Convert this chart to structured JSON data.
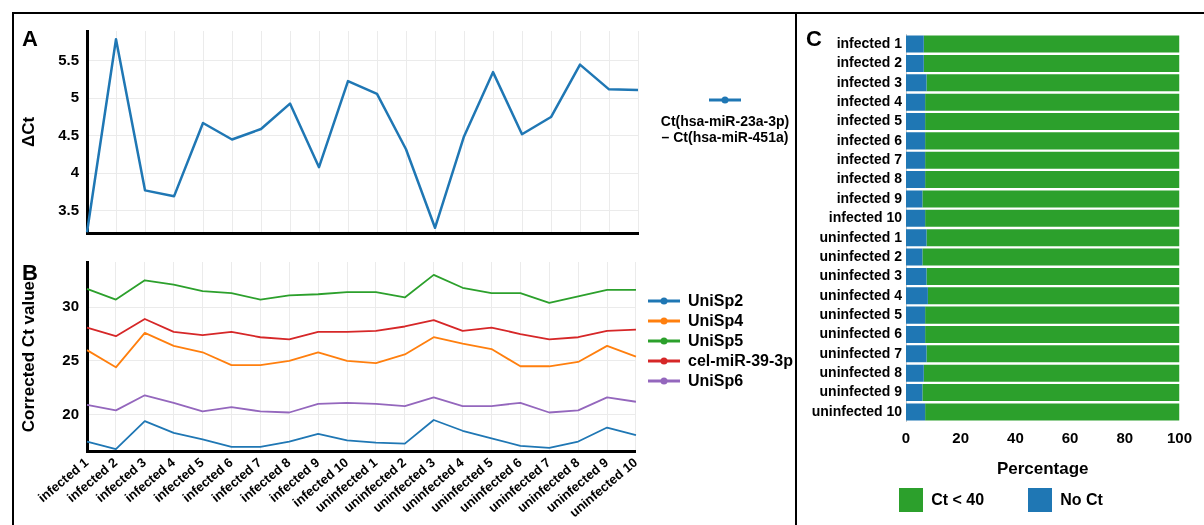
{
  "chart_data": [
    {
      "type": "line",
      "title": "A",
      "categories": [
        null,
        null,
        null,
        null,
        null,
        null,
        null,
        null,
        null,
        null,
        null,
        null,
        null,
        null,
        null,
        null,
        null,
        null,
        null,
        null
      ],
      "series": [
        {
          "name": "Ct(hsa-miR-23a-3p) – Ct(hsa-miR-451a)",
          "color": "#1f77b4",
          "values": [
            3.21,
            5.79,
            3.77,
            3.69,
            4.67,
            4.45,
            4.59,
            4.93,
            4.08,
            5.23,
            5.06,
            4.32,
            3.27,
            4.49,
            5.35,
            4.52,
            4.75,
            5.45,
            5.12,
            5.11
          ]
        }
      ],
      "ylabel": "ΔCt",
      "ylim": [
        3.2,
        5.9
      ],
      "yticks": [
        3.5,
        4,
        4.5,
        5,
        5.5
      ],
      "grid": true,
      "legend": "right",
      "tick_labels": "y"
    },
    {
      "type": "line",
      "title": "B",
      "categories": [
        "infected 1",
        "infected 2",
        "infected 3",
        "infected 4",
        "infected 5",
        "infected 6",
        "infected 7",
        "infected 8",
        "infected 9",
        "infected 10",
        "uninfected 1",
        "uninfected 2",
        "uninfected 3",
        "uninfected 4",
        "uninfected 5",
        "uninfected 6",
        "uninfected 7",
        "uninfected 8",
        "uninfected 9",
        "uninfected 10"
      ],
      "series": [
        {
          "name": "UniSp2",
          "color": "#1f77b4",
          "values": [
            17.5,
            16.8,
            19.4,
            18.3,
            17.7,
            17.0,
            17.0,
            17.5,
            18.2,
            17.6,
            17.4,
            17.3,
            19.5,
            18.5,
            17.8,
            17.1,
            16.9,
            17.5,
            18.8,
            18.1
          ]
        },
        {
          "name": "UniSp4",
          "color": "#ff7f0e",
          "values": [
            26.0,
            24.4,
            27.6,
            26.4,
            25.8,
            24.6,
            24.6,
            25.0,
            25.8,
            25.0,
            24.8,
            25.6,
            27.2,
            26.6,
            26.1,
            24.5,
            24.5,
            24.9,
            26.4,
            25.4
          ]
        },
        {
          "name": "UniSp5",
          "color": "#2ca02c",
          "values": [
            31.7,
            30.7,
            32.5,
            32.1,
            31.5,
            31.3,
            30.7,
            31.1,
            31.2,
            31.4,
            31.4,
            30.9,
            33.0,
            31.8,
            31.3,
            31.3,
            30.4,
            31.0,
            31.6,
            31.6
          ]
        },
        {
          "name": "cel-miR-39-3p",
          "color": "#d62728",
          "values": [
            28.1,
            27.3,
            28.9,
            27.7,
            27.4,
            27.7,
            27.2,
            27.0,
            27.7,
            27.7,
            27.8,
            28.2,
            28.8,
            27.8,
            28.1,
            27.5,
            27.0,
            27.2,
            27.8,
            27.9
          ]
        },
        {
          "name": "UniSp6",
          "color": "#9467bd",
          "values": [
            20.9,
            20.4,
            21.8,
            21.1,
            20.3,
            20.7,
            20.3,
            20.2,
            21.0,
            21.1,
            21.0,
            20.8,
            21.6,
            20.8,
            20.8,
            21.1,
            20.2,
            20.4,
            21.6,
            21.2
          ]
        }
      ],
      "ylabel": "Corrected Ct value",
      "ylim": [
        16.6,
        34.2
      ],
      "yticks": [
        20,
        25,
        30
      ],
      "grid": true,
      "legend": "right"
    },
    {
      "type": "bar",
      "title": "C",
      "orientation": "horizontal",
      "stacked": true,
      "categories": [
        "infected 1",
        "infected 2",
        "infected 3",
        "infected 4",
        "infected 5",
        "infected 6",
        "infected 7",
        "infected 8",
        "infected 9",
        "infected 10",
        "uninfected 1",
        "uninfected 2",
        "uninfected 3",
        "uninfected 4",
        "uninfected 5",
        "uninfected 6",
        "uninfected 7",
        "uninfected 8",
        "uninfected 9",
        "uninfected 10"
      ],
      "series": [
        {
          "name": "No Ct",
          "color": "#1f77b4",
          "values": [
            6.5,
            6.5,
            7.5,
            7,
            7,
            7,
            7,
            7,
            6,
            7,
            7.5,
            6,
            7.5,
            8,
            7,
            7,
            7.5,
            6.5,
            6,
            7
          ]
        },
        {
          "name": "Ct < 40",
          "color": "#2ca02c",
          "values": [
            93.5,
            93.5,
            92.5,
            93,
            93,
            93,
            93,
            93,
            94,
            93,
            92.5,
            94,
            92.5,
            92,
            93,
            93,
            92.5,
            93.5,
            94,
            93
          ]
        }
      ],
      "xlabel": "Percentage",
      "xlim": [
        0,
        100
      ],
      "xticks": [
        0,
        20,
        40,
        60,
        80,
        100
      ],
      "legend": "bottom"
    }
  ]
}
